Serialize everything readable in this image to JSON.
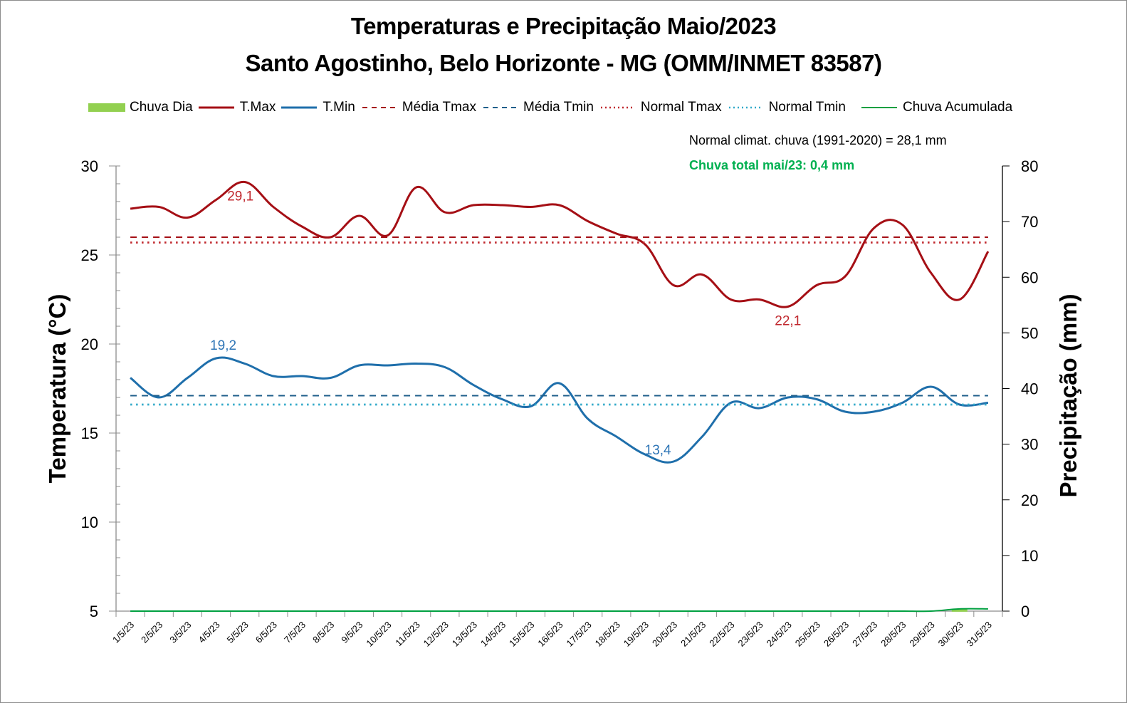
{
  "chart_data": {
    "type": "line",
    "title": "Temperaturas e Precipitação Maio/2023",
    "subtitle": "Santo Agostinho, Belo Horizonte - MG (OMM/INMET 83587)",
    "ylabel": "Temperatura (°C)",
    "y2label": "Precipitação (mm)",
    "ylim": [
      5,
      30
    ],
    "y2lim": [
      0,
      80
    ],
    "yticks": [
      "5",
      "10",
      "15",
      "20",
      "25",
      "30"
    ],
    "y2ticks": [
      "0",
      "10",
      "20",
      "30",
      "40",
      "50",
      "60",
      "70",
      "80"
    ],
    "legend_position": "top",
    "grid": false,
    "categories": [
      "1/5/23",
      "2/5/23",
      "3/5/23",
      "4/5/23",
      "5/5/23",
      "6/5/23",
      "7/5/23",
      "8/5/23",
      "9/5/23",
      "10/5/23",
      "11/5/23",
      "12/5/23",
      "13/5/23",
      "14/5/23",
      "15/5/23",
      "16/5/23",
      "17/5/23",
      "18/5/23",
      "19/5/23",
      "20/5/23",
      "21/5/23",
      "22/5/23",
      "23/5/23",
      "24/5/23",
      "25/5/23",
      "26/5/23",
      "27/5/23",
      "28/5/23",
      "29/5/23",
      "30/5/23",
      "31/5/23"
    ],
    "legend": [
      "Chuva Dia",
      "T.Max",
      "T.Min",
      "Média Tmax",
      "Média Tmin",
      "Normal Tmax",
      "Normal Tmin",
      "Chuva Acumulada"
    ],
    "series": [
      {
        "name": "T.Max",
        "axis": "left",
        "style": "solid",
        "color": "#a50f15",
        "values": [
          27.6,
          27.7,
          27.1,
          28.1,
          29.1,
          27.7,
          26.6,
          26.0,
          27.2,
          26.1,
          28.8,
          27.4,
          27.8,
          27.8,
          27.7,
          27.8,
          26.9,
          26.2,
          25.6,
          23.3,
          23.9,
          22.5,
          22.5,
          22.1,
          23.3,
          23.8,
          26.5,
          26.7,
          24.0,
          22.5,
          25.2
        ]
      },
      {
        "name": "T.Min",
        "axis": "left",
        "style": "solid",
        "color": "#1f6fab",
        "values": [
          18.1,
          17.0,
          18.1,
          19.2,
          18.9,
          18.2,
          18.2,
          18.1,
          18.8,
          18.8,
          18.9,
          18.7,
          17.7,
          16.9,
          16.5,
          17.8,
          15.8,
          14.8,
          13.8,
          13.4,
          14.8,
          16.7,
          16.4,
          17.0,
          16.9,
          16.2,
          16.2,
          16.7,
          17.6,
          16.6,
          16.7
        ]
      },
      {
        "name": "Média Tmax",
        "axis": "left",
        "style": "dashed",
        "color": "#a50f15",
        "value": 26.0
      },
      {
        "name": "Média Tmin",
        "axis": "left",
        "style": "dashed",
        "color": "#1f5f8b",
        "value": 17.1
      },
      {
        "name": "Normal Tmax",
        "axis": "left",
        "style": "dotted",
        "color": "#c0272d",
        "value": 25.7
      },
      {
        "name": "Normal Tmin",
        "axis": "left",
        "style": "dotted",
        "color": "#31a9c9",
        "value": 16.6
      },
      {
        "name": "Chuva Dia",
        "axis": "right",
        "type": "bar",
        "color": "#92d050",
        "values": [
          0,
          0,
          0,
          0,
          0,
          0,
          0,
          0,
          0,
          0,
          0,
          0,
          0,
          0,
          0,
          0,
          0,
          0,
          0,
          0,
          0,
          0,
          0,
          0,
          0,
          0,
          0,
          0,
          0,
          0.4,
          0
        ]
      },
      {
        "name": "Chuva Acumulada",
        "axis": "right",
        "style": "solid",
        "color": "#00a040",
        "values": [
          0,
          0,
          0,
          0,
          0,
          0,
          0,
          0,
          0,
          0,
          0,
          0,
          0,
          0,
          0,
          0,
          0,
          0,
          0,
          0,
          0,
          0,
          0,
          0,
          0,
          0,
          0,
          0,
          0,
          0.4,
          0.4
        ]
      }
    ],
    "annotations": [
      {
        "series": "T.Max",
        "day": 5,
        "text": "29,1",
        "color": "#c0272d"
      },
      {
        "series": "T.Max",
        "day": 24,
        "text": "22,1",
        "color": "#c0272d"
      },
      {
        "series": "T.Min",
        "day": 4,
        "text": "19,2",
        "color": "#2e75b6"
      },
      {
        "series": "T.Min",
        "day": 20,
        "text": "13,4",
        "color": "#2e75b6"
      }
    ],
    "notes": {
      "normal": "Normal climat. chuva (1991-2020) = 28,1 mm",
      "total": "Chuva total mai/23: 0,4 mm"
    }
  },
  "colors": {
    "tmax": "#a50f15",
    "tmin": "#1f6fab",
    "media_tmin": "#1f5f8b",
    "normal_tmax": "#c0272d",
    "normal_tmin": "#31a9c9",
    "rain": "#92d050",
    "rain_acc": "#00a040",
    "total_note": "#00b050"
  }
}
